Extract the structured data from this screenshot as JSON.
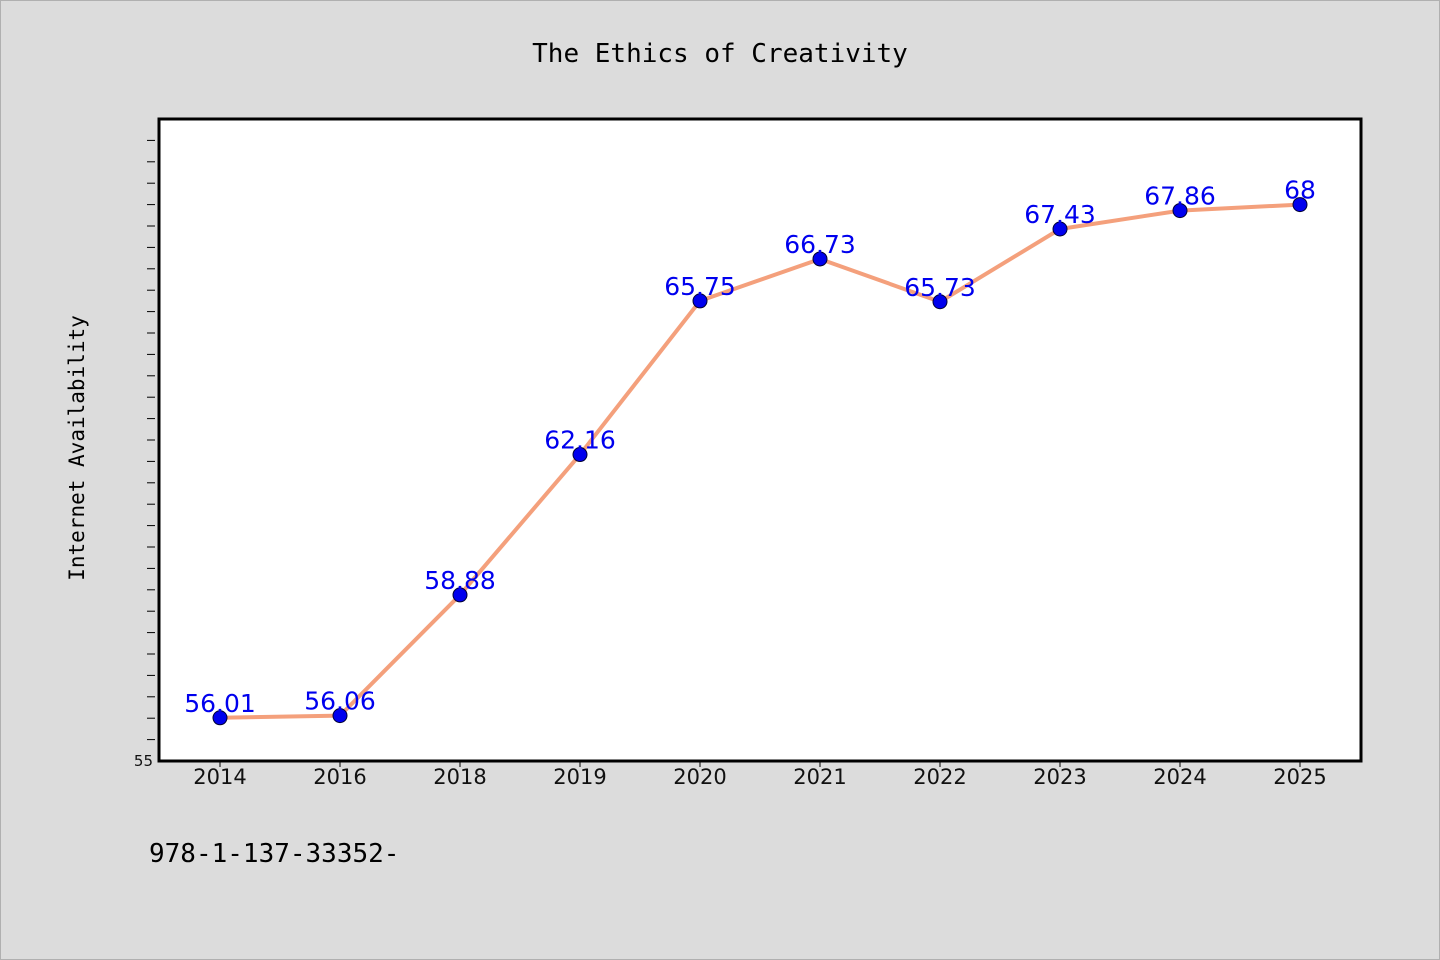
{
  "chart_data": {
    "type": "line",
    "title": "The Ethics of Creativity",
    "xlabel": "",
    "ylabel": "Internet Availability",
    "categories": [
      "2014",
      "2016",
      "2018",
      "2019",
      "2020",
      "2021",
      "2022",
      "2023",
      "2024",
      "2025"
    ],
    "series": [
      {
        "values": [
          56.01,
          56.06,
          58.88,
          62.16,
          65.75,
          66.73,
          65.73,
          67.43,
          67.86,
          68
        ]
      }
    ],
    "data_labels": [
      "56.01",
      "56.06",
      "58.88",
      "62.16",
      "65.75",
      "66.73",
      "65.73",
      "67.43",
      "67.86",
      "68"
    ],
    "ylim": [
      55,
      70
    ],
    "y_tick_labels": [
      "55"
    ],
    "grid": false,
    "line_color": "#f4a07c",
    "marker_color": "#0000ee",
    "label_color": "#0000ee"
  },
  "footer": {
    "text": "978-1-137-33352-"
  }
}
